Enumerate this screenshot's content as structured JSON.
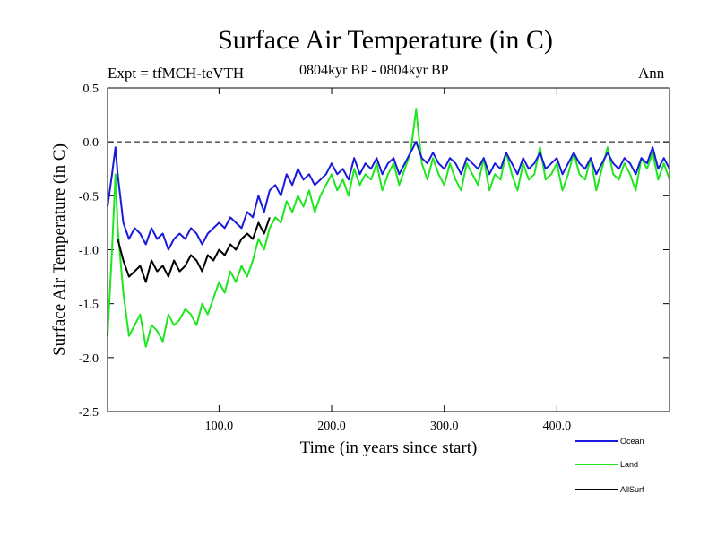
{
  "header": {
    "title": "Surface Air Temperature (in C)",
    "expt": "Expt = tfMCH-teVTH",
    "period": "0804kyr BP - 0804kyr BP",
    "season": "Ann"
  },
  "colors": {
    "ocean": "#1a1adc",
    "land": "#1ee61e",
    "allsurf": "#000000",
    "axis": "#000000",
    "zero_line": "#000000"
  },
  "chart_data": {
    "type": "line",
    "title": "Surface Air Temperature (in C)",
    "xlabel": "Time (in years since start)",
    "ylabel": "Surface Air Temperature (in C)",
    "xlim": [
      1,
      500
    ],
    "ylim": [
      -2.5,
      0.5
    ],
    "x_ticks": [
      100,
      200,
      300,
      400
    ],
    "x_tick_labels": [
      "100.0",
      "200.0",
      "300.0",
      "400.0"
    ],
    "y_ticks": [
      0.5,
      0.0,
      -0.5,
      -1.0,
      -1.5,
      -2.0,
      -2.5
    ],
    "y_tick_labels": [
      "0.5",
      "0.0",
      "-0.5",
      "-1.0",
      "-1.5",
      "-2.0",
      "-2.5"
    ],
    "reference_line": {
      "y": 0.0,
      "style": "dashed"
    },
    "legend": {
      "placement": "bottom-right",
      "entries": [
        "Ocean",
        "Land",
        "AllSurf"
      ]
    },
    "series": [
      {
        "name": "Ocean",
        "color": "#1a1adc",
        "x": [
          1,
          5,
          8,
          10,
          15,
          20,
          25,
          30,
          35,
          40,
          45,
          50,
          55,
          60,
          65,
          70,
          75,
          80,
          85,
          90,
          95,
          100,
          105,
          110,
          115,
          120,
          125,
          130,
          135,
          140,
          145,
          150,
          155,
          160,
          165,
          170,
          175,
          180,
          185,
          190,
          195,
          200,
          205,
          210,
          215,
          220,
          225,
          230,
          235,
          240,
          245,
          250,
          255,
          260,
          265,
          270,
          275,
          280,
          285,
          290,
          295,
          300,
          305,
          310,
          315,
          320,
          325,
          330,
          335,
          340,
          345,
          350,
          355,
          360,
          365,
          370,
          375,
          380,
          385,
          390,
          395,
          400,
          405,
          410,
          415,
          420,
          425,
          430,
          435,
          440,
          445,
          450,
          455,
          460,
          465,
          470,
          475,
          480,
          485,
          490,
          495,
          500
        ],
        "values": [
          -0.6,
          -0.3,
          -0.05,
          -0.3,
          -0.75,
          -0.9,
          -0.8,
          -0.85,
          -0.95,
          -0.8,
          -0.9,
          -0.85,
          -1.0,
          -0.9,
          -0.85,
          -0.9,
          -0.8,
          -0.85,
          -0.95,
          -0.85,
          -0.8,
          -0.75,
          -0.8,
          -0.7,
          -0.75,
          -0.8,
          -0.65,
          -0.7,
          -0.5,
          -0.65,
          -0.45,
          -0.4,
          -0.5,
          -0.3,
          -0.4,
          -0.25,
          -0.35,
          -0.3,
          -0.4,
          -0.35,
          -0.3,
          -0.2,
          -0.3,
          -0.25,
          -0.35,
          -0.15,
          -0.3,
          -0.2,
          -0.25,
          -0.15,
          -0.3,
          -0.2,
          -0.15,
          -0.3,
          -0.2,
          -0.1,
          0.0,
          -0.15,
          -0.2,
          -0.1,
          -0.2,
          -0.25,
          -0.15,
          -0.2,
          -0.3,
          -0.15,
          -0.2,
          -0.25,
          -0.15,
          -0.3,
          -0.2,
          -0.25,
          -0.1,
          -0.2,
          -0.3,
          -0.15,
          -0.25,
          -0.2,
          -0.1,
          -0.25,
          -0.2,
          -0.15,
          -0.3,
          -0.2,
          -0.1,
          -0.2,
          -0.25,
          -0.15,
          -0.3,
          -0.2,
          -0.1,
          -0.2,
          -0.25,
          -0.15,
          -0.2,
          -0.3,
          -0.15,
          -0.2,
          -0.05,
          -0.25,
          -0.15,
          -0.25
        ]
      },
      {
        "name": "Land",
        "color": "#1ee61e",
        "x": [
          1,
          5,
          8,
          10,
          15,
          20,
          25,
          30,
          35,
          40,
          45,
          50,
          55,
          60,
          65,
          70,
          75,
          80,
          85,
          90,
          95,
          100,
          105,
          110,
          115,
          120,
          125,
          130,
          135,
          140,
          145,
          150,
          155,
          160,
          165,
          170,
          175,
          180,
          185,
          190,
          195,
          200,
          205,
          210,
          215,
          220,
          225,
          230,
          235,
          240,
          245,
          250,
          255,
          260,
          265,
          270,
          275,
          280,
          285,
          290,
          295,
          300,
          305,
          310,
          315,
          320,
          325,
          330,
          335,
          340,
          345,
          350,
          355,
          360,
          365,
          370,
          375,
          380,
          385,
          390,
          395,
          400,
          405,
          410,
          415,
          420,
          425,
          430,
          435,
          440,
          445,
          450,
          455,
          460,
          465,
          470,
          475,
          480,
          485,
          490,
          495,
          500
        ],
        "values": [
          -1.8,
          -1.0,
          -0.3,
          -0.8,
          -1.4,
          -1.8,
          -1.7,
          -1.6,
          -1.9,
          -1.7,
          -1.75,
          -1.85,
          -1.6,
          -1.7,
          -1.65,
          -1.55,
          -1.6,
          -1.7,
          -1.5,
          -1.6,
          -1.45,
          -1.3,
          -1.4,
          -1.2,
          -1.3,
          -1.15,
          -1.25,
          -1.1,
          -0.9,
          -1.0,
          -0.8,
          -0.7,
          -0.75,
          -0.55,
          -0.65,
          -0.5,
          -0.6,
          -0.45,
          -0.65,
          -0.5,
          -0.4,
          -0.3,
          -0.45,
          -0.35,
          -0.5,
          -0.25,
          -0.4,
          -0.3,
          -0.35,
          -0.2,
          -0.45,
          -0.3,
          -0.2,
          -0.4,
          -0.25,
          -0.1,
          0.3,
          -0.2,
          -0.35,
          -0.15,
          -0.3,
          -0.4,
          -0.2,
          -0.35,
          -0.45,
          -0.2,
          -0.3,
          -0.4,
          -0.15,
          -0.45,
          -0.3,
          -0.35,
          -0.1,
          -0.3,
          -0.45,
          -0.2,
          -0.35,
          -0.3,
          -0.05,
          -0.35,
          -0.3,
          -0.2,
          -0.45,
          -0.3,
          -0.1,
          -0.3,
          -0.35,
          -0.15,
          -0.45,
          -0.25,
          -0.05,
          -0.3,
          -0.35,
          -0.2,
          -0.3,
          -0.45,
          -0.15,
          -0.25,
          -0.1,
          -0.35,
          -0.2,
          -0.35
        ]
      },
      {
        "name": "AllSurf",
        "color": "#000000",
        "x": [
          10,
          15,
          20,
          25,
          30,
          35,
          40,
          45,
          50,
          55,
          60,
          65,
          70,
          75,
          80,
          85,
          90,
          95,
          100,
          105,
          110,
          115,
          120,
          125,
          130,
          135,
          140,
          145
        ],
        "values": [
          -0.9,
          -1.1,
          -1.25,
          -1.2,
          -1.15,
          -1.3,
          -1.1,
          -1.2,
          -1.15,
          -1.25,
          -1.1,
          -1.2,
          -1.15,
          -1.05,
          -1.1,
          -1.2,
          -1.05,
          -1.1,
          -1.0,
          -1.05,
          -0.95,
          -1.0,
          -0.9,
          -0.85,
          -0.9,
          -0.75,
          -0.85,
          -0.7
        ]
      }
    ]
  }
}
